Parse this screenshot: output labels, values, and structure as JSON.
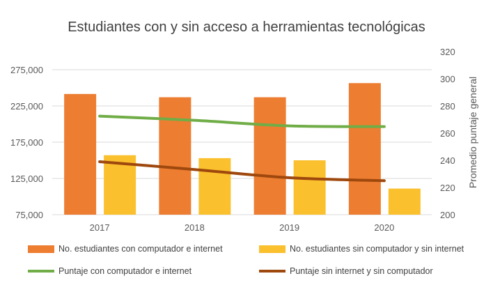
{
  "chart_data": {
    "type": "bar",
    "title": "Estudiantes con y sin acceso a herramientas tecnológicas",
    "categories": [
      "2017",
      "2018",
      "2019",
      "2020"
    ],
    "y_left": {
      "label": "",
      "range": [
        75000,
        300000
      ],
      "ticks": [
        "75,000",
        "125,000",
        "175,000",
        "225,000",
        "275,000"
      ],
      "tick_values": [
        75000,
        125000,
        175000,
        225000,
        275000
      ]
    },
    "y_right": {
      "label": "Promedio puntaje general",
      "range": [
        200,
        320
      ],
      "ticks": [
        "200",
        "220",
        "240",
        "260",
        "280",
        "300",
        "320"
      ],
      "tick_values": [
        200,
        220,
        240,
        260,
        280,
        300,
        320
      ]
    },
    "grid": true,
    "legend_position": "bottom",
    "series": [
      {
        "name": "No. estudiantes con computador e internet",
        "type": "bar",
        "axis": "left",
        "color": "#ED7D31",
        "values": [
          241500,
          237000,
          237000,
          256500
        ]
      },
      {
        "name": "No. estudiantes sin computador y sin internet",
        "type": "bar",
        "axis": "left",
        "color": "#FBC02D",
        "values": [
          157000,
          153000,
          150000,
          111000
        ]
      },
      {
        "name": "Puntaje con computador e internet",
        "type": "line",
        "axis": "right",
        "color": "#70AD47",
        "values": [
          272.5,
          269.4,
          265.3,
          264.8
        ]
      },
      {
        "name": "Puntaje sin internet y sin computador",
        "type": "line",
        "axis": "right",
        "color": "#9E480E",
        "values": [
          239,
          233.2,
          227.2,
          225
        ]
      }
    ]
  }
}
